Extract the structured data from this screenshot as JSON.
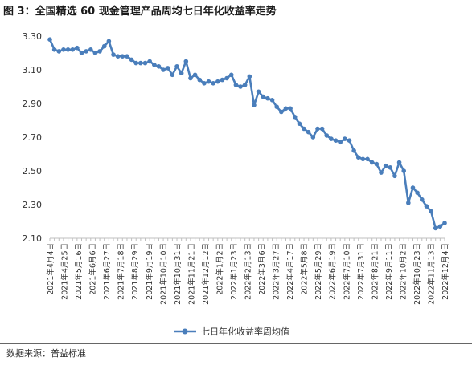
{
  "title": "图 3：全国精选 60 现金管理产品周均七日年化收益率走势",
  "source": "数据来源：普益标准",
  "chart_data": {
    "type": "line",
    "title": "图 3：全国精选 60 现金管理产品周均七日年化收益率走势",
    "xlabel": "",
    "ylabel": "",
    "ylim": [
      2.1,
      3.3
    ],
    "yticks": [
      "2.10",
      "2.30",
      "2.50",
      "2.70",
      "2.90",
      "3.10",
      "3.30"
    ],
    "grid": false,
    "legend_position": "bottom",
    "series_color": "#4a7ebb",
    "x_tick_labels": [
      "2021年4月4日",
      "2021年4月25日",
      "2021年5月16日",
      "2021年6月6日",
      "2021年6月27日",
      "2021年7月18日",
      "2021年8月29日",
      "2021年9月19日",
      "2021年10月10日",
      "2021年10月31日",
      "2021年11月21日",
      "2021年12月12日",
      "2022年1月2日",
      "2022年1月23日",
      "2022年2月13日",
      "2022年3月6日",
      "2022年3月27日",
      "2022年4月17日",
      "2022年5月8日",
      "2022年5月29日",
      "2022年6月19日",
      "2022年7月10日",
      "2022年7月31日",
      "2022年8月21日",
      "2022年9月11日",
      "2022年10月2日",
      "2022年10月23日",
      "2022年11月13日",
      "2022年12月4日"
    ],
    "series": [
      {
        "name": "七日年化收益率周均值",
        "values": [
          3.28,
          3.22,
          3.21,
          3.22,
          3.22,
          3.22,
          3.23,
          3.2,
          3.21,
          3.22,
          3.2,
          3.21,
          3.24,
          3.27,
          3.19,
          3.18,
          3.18,
          3.18,
          3.16,
          3.14,
          3.14,
          3.14,
          3.15,
          3.13,
          3.12,
          3.1,
          3.11,
          3.07,
          3.12,
          3.08,
          3.15,
          3.05,
          3.07,
          3.04,
          3.02,
          3.03,
          3.02,
          3.03,
          3.04,
          3.05,
          3.07,
          3.01,
          3.0,
          3.01,
          3.06,
          2.89,
          2.97,
          2.94,
          2.93,
          2.92,
          2.88,
          2.85,
          2.87,
          2.87,
          2.82,
          2.78,
          2.75,
          2.73,
          2.7,
          2.75,
          2.75,
          2.71,
          2.69,
          2.68,
          2.67,
          2.69,
          2.68,
          2.62,
          2.58,
          2.57,
          2.57,
          2.55,
          2.54,
          2.49,
          2.53,
          2.52,
          2.47,
          2.55,
          2.5,
          2.31,
          2.4,
          2.37,
          2.33,
          2.29,
          2.26,
          2.16,
          2.17,
          2.19
        ]
      }
    ]
  }
}
